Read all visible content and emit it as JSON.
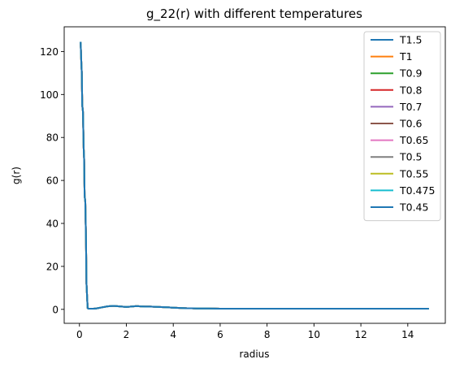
{
  "chart_data": {
    "type": "line",
    "title": "g_22(r) with different temperatures",
    "xlabel": "radius",
    "ylabel": "g(r)",
    "xlim": [
      -0.65,
      15.6
    ],
    "ylim": [
      -6.5,
      131.5
    ],
    "xticks": [
      0,
      2,
      4,
      6,
      8,
      10,
      12,
      14
    ],
    "yticks": [
      0,
      20,
      40,
      60,
      80,
      100,
      120
    ],
    "grid": false,
    "legend_position": "top-right",
    "x": [
      0.05,
      0.08,
      0.1,
      0.12,
      0.15,
      0.18,
      0.2,
      0.22,
      0.25,
      0.28,
      0.3,
      0.35,
      0.4,
      0.5,
      0.6,
      0.7,
      0.8,
      0.9,
      1.0,
      1.1,
      1.2,
      1.3,
      1.4,
      1.5,
      1.6,
      1.7,
      1.8,
      1.9,
      2.0,
      2.1,
      2.2,
      2.3,
      2.4,
      2.5,
      2.6,
      2.8,
      3.0,
      3.2,
      3.4,
      3.6,
      3.8,
      4.0,
      4.2,
      4.4,
      4.6,
      4.8,
      5.0,
      5.5,
      6.0,
      7.0,
      8.0,
      9.0,
      10.0,
      11.0,
      12.0,
      13.0,
      14.0,
      14.9
    ],
    "series": [
      {
        "name": "T1.5",
        "color": "#1f77b4"
      },
      {
        "name": "T1",
        "color": "#ff7f0e"
      },
      {
        "name": "T0.9",
        "color": "#2ca02c"
      },
      {
        "name": "T0.8",
        "color": "#d62728"
      },
      {
        "name": "T0.7",
        "color": "#9467bd"
      },
      {
        "name": "T0.6",
        "color": "#8c564b"
      },
      {
        "name": "T0.65",
        "color": "#e377c2"
      },
      {
        "name": "T0.5",
        "color": "#7f7f7f"
      },
      {
        "name": "T0.55",
        "color": "#bcbd22"
      },
      {
        "name": "T0.475",
        "color": "#17becf"
      },
      {
        "name": "T0.45",
        "color": "#1f77b4"
      }
    ],
    "shared_values": [
      124.5,
      115,
      110,
      95,
      92,
      75,
      70,
      53,
      50,
      32,
      12,
      0.5,
      0.3,
      0.3,
      0.3,
      0.4,
      0.6,
      0.8,
      1.0,
      1.2,
      1.4,
      1.5,
      1.6,
      1.6,
      1.5,
      1.4,
      1.3,
      1.2,
      1.1,
      1.2,
      1.3,
      1.4,
      1.5,
      1.5,
      1.4,
      1.3,
      1.3,
      1.2,
      1.1,
      1.0,
      0.9,
      0.8,
      0.7,
      0.6,
      0.5,
      0.5,
      0.4,
      0.4,
      0.3,
      0.3,
      0.3,
      0.3,
      0.3,
      0.3,
      0.3,
      0.3,
      0.3,
      0.3
    ]
  }
}
